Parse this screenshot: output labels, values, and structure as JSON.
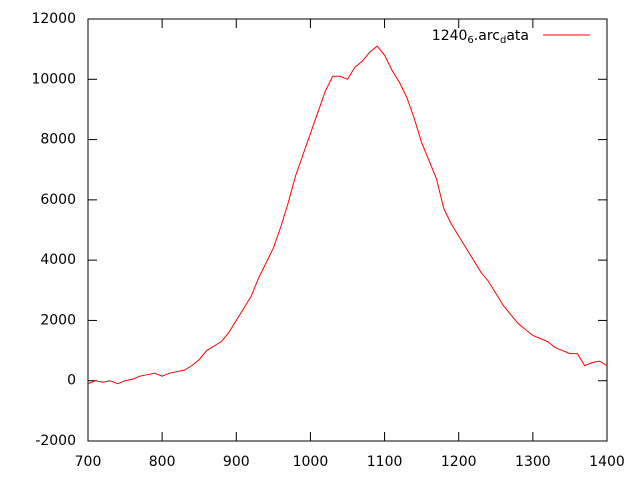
{
  "chart_data": {
    "type": "line",
    "x": [
      700,
      710,
      720,
      730,
      740,
      750,
      760,
      770,
      780,
      790,
      800,
      810,
      820,
      830,
      840,
      850,
      860,
      870,
      880,
      890,
      900,
      910,
      920,
      930,
      940,
      950,
      960,
      970,
      980,
      990,
      1000,
      1010,
      1020,
      1030,
      1040,
      1050,
      1060,
      1070,
      1080,
      1090,
      1100,
      1110,
      1120,
      1130,
      1140,
      1150,
      1160,
      1170,
      1180,
      1190,
      1200,
      1210,
      1220,
      1230,
      1240,
      1250,
      1260,
      1270,
      1280,
      1290,
      1300,
      1310,
      1320,
      1330,
      1340,
      1350,
      1360,
      1370,
      1380,
      1390,
      1400
    ],
    "series": [
      {
        "name": "1240_6.arc_data",
        "color": "#ff0000",
        "values": [
          -100,
          0,
          -50,
          0,
          -100,
          0,
          50,
          150,
          200,
          250,
          150,
          250,
          300,
          350,
          500,
          700,
          1000,
          1150,
          1300,
          1600,
          2000,
          2400,
          2800,
          3400,
          3900,
          4400,
          5100,
          5900,
          6800,
          7500,
          8200,
          8900,
          9600,
          10100,
          10100,
          10000,
          10400,
          10600,
          10900,
          11100,
          10800,
          10300,
          9900,
          9400,
          8700,
          7900,
          7300,
          6700,
          5700,
          5200,
          4800,
          4400,
          4000,
          3600,
          3300,
          2900,
          2500,
          2200,
          1900,
          1700,
          1500,
          1400,
          1300,
          1100,
          1000,
          900,
          900,
          500,
          600,
          650,
          500
        ]
      }
    ],
    "xlim": [
      700,
      1400
    ],
    "xticks": [
      700,
      800,
      900,
      1000,
      1100,
      1200,
      1300,
      1400
    ],
    "ylim": [
      -2000,
      12000
    ],
    "yticks": [
      -2000,
      0,
      2000,
      4000,
      6000,
      8000,
      10000,
      12000
    ],
    "legend": "top-right",
    "grid": false
  }
}
